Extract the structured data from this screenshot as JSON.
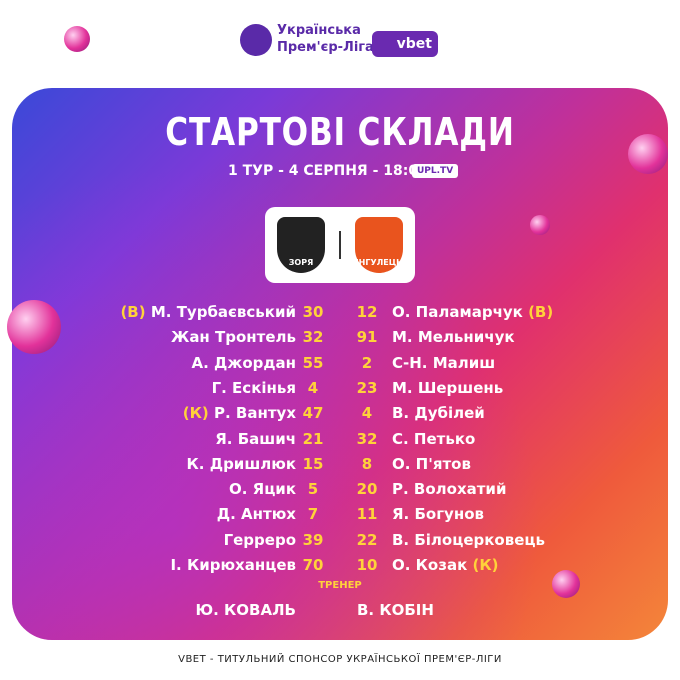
{
  "header": {
    "league_line1": "Українська",
    "league_line2": "Прем'єр-Ліга",
    "sponsor": "vbet"
  },
  "title": "СТАРТОВІ СКЛАДИ",
  "subtitle": "1 ТУР - 4 СЕРПНЯ - 18:00",
  "badge": "UPL.TV",
  "crests": {
    "home": "ЗОРЯ",
    "away": "ІНГУЛЕЦЬ"
  },
  "home_lineup": [
    {
      "tag": "(В)",
      "name": "М. Турбаєвський",
      "number": 30
    },
    {
      "name": "Жан Тронтель",
      "number": 32
    },
    {
      "name": "А. Джордан",
      "number": 55
    },
    {
      "name": "Г. Ескінья",
      "number": 4
    },
    {
      "tag": "(К)",
      "name": "Р. Вантух",
      "number": 47
    },
    {
      "name": "Я. Башич",
      "number": 21
    },
    {
      "name": "К. Дришлюк",
      "number": 15
    },
    {
      "name": "О. Яцик",
      "number": 5
    },
    {
      "name": "Д. Антюх",
      "number": 7
    },
    {
      "name": "Герреро",
      "number": 39
    },
    {
      "name": "І. Кирюханцев",
      "number": 70
    }
  ],
  "away_lineup": [
    {
      "number": 12,
      "name": "О. Паламарчук",
      "tag": "(В)"
    },
    {
      "number": 91,
      "name": "М. Мельничук"
    },
    {
      "number": 2,
      "name": "С-Н. Малиш"
    },
    {
      "number": 23,
      "name": "М. Шершень"
    },
    {
      "number": 4,
      "name": "В. Дубілей"
    },
    {
      "number": 32,
      "name": "С. Петько"
    },
    {
      "number": 8,
      "name": "О. П'ятов"
    },
    {
      "number": 20,
      "name": "Р. Волохатий"
    },
    {
      "number": 11,
      "name": "Я. Богунов"
    },
    {
      "number": 22,
      "name": "В. Білоцерковець"
    },
    {
      "number": 10,
      "name": "О. Козак",
      "tag": "(К)"
    }
  ],
  "coach_label": "ТРЕНЕР",
  "coaches": {
    "home": "Ю. КОВАЛЬ",
    "away": "В. КОБІН"
  },
  "footer": "VBET - ТИТУЛЬНИЙ СПОНСОР УКРАЇНСЬКОЇ ПРЕМ'ЄР-ЛІГИ"
}
